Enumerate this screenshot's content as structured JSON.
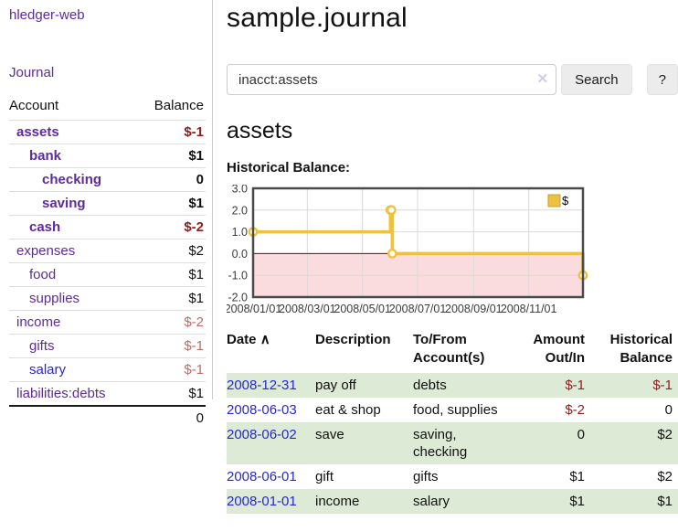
{
  "app": {
    "brand": "hledger-web",
    "nav_journal": "Journal"
  },
  "sidebar": {
    "table": {
      "col_account": "Account",
      "col_balance": "Balance"
    },
    "accounts": [
      {
        "name": "assets",
        "balance": "$-1",
        "level": 1,
        "bold": true,
        "balance_tone": "neg-strong",
        "link_tone": "purple"
      },
      {
        "name": "bank",
        "balance": "$1",
        "level": 2,
        "bold": true,
        "balance_tone": "plain",
        "link_tone": "purple"
      },
      {
        "name": "checking",
        "balance": "0",
        "level": 3,
        "bold": true,
        "balance_tone": "plain",
        "link_tone": "purple"
      },
      {
        "name": "saving",
        "balance": "$1",
        "level": 3,
        "bold": true,
        "balance_tone": "plain",
        "link_tone": "purple"
      },
      {
        "name": "cash",
        "balance": "$-2",
        "level": 2,
        "bold": true,
        "balance_tone": "neg-strong",
        "link_tone": "purple"
      },
      {
        "name": "expenses",
        "balance": "$2",
        "level": 1,
        "bold": false,
        "balance_tone": "plain",
        "link_tone": "purple"
      },
      {
        "name": "food",
        "balance": "$1",
        "level": 2,
        "bold": false,
        "balance_tone": "plain",
        "link_tone": "purple"
      },
      {
        "name": "supplies",
        "balance": "$1",
        "level": 2,
        "bold": false,
        "balance_tone": "plain",
        "link_tone": "purple"
      },
      {
        "name": "income",
        "balance": "$-2",
        "level": 1,
        "bold": false,
        "balance_tone": "neg-soft",
        "link_tone": "purple"
      },
      {
        "name": "gifts",
        "balance": "$-1",
        "level": 2,
        "bold": false,
        "balance_tone": "neg-soft",
        "link_tone": "purple"
      },
      {
        "name": "salary",
        "balance": "$-1",
        "level": 2,
        "bold": false,
        "balance_tone": "neg-soft",
        "link_tone": "blue"
      },
      {
        "name": "liabilities:debts",
        "balance": "$1",
        "level": 1,
        "bold": false,
        "balance_tone": "plain",
        "link_tone": "purple"
      }
    ],
    "total": "0"
  },
  "main": {
    "title": "sample.journal",
    "search": {
      "value": "inacct:assets",
      "clear_icon": "✕",
      "button": "Search",
      "help_button": "?"
    },
    "account_heading": "assets",
    "register": {
      "headers": {
        "date": "Date",
        "sort_icon": "∧",
        "description": "Description",
        "account_line1": "To/From",
        "account_line2": "Account(s)",
        "amount_line1": "Amount",
        "amount_line2": "Out/In",
        "balance_line1": "Historical",
        "balance_line2": "Balance"
      },
      "rows": [
        {
          "date": "2008-12-31",
          "description": "pay off",
          "accounts": "debts",
          "amount": "$-1",
          "amount_tone": "neg",
          "balance": "$-1",
          "balance_tone": "neg",
          "shaded": true
        },
        {
          "date": "2008-06-03",
          "description": "eat & shop",
          "accounts": "food, supplies",
          "amount": "$-2",
          "amount_tone": "neg",
          "balance": "0",
          "balance_tone": "plain",
          "shaded": false
        },
        {
          "date": "2008-06-02",
          "description": "save",
          "accounts": "saving, checking",
          "amount": "0",
          "amount_tone": "plain",
          "balance": "$2",
          "balance_tone": "plain",
          "shaded": true
        },
        {
          "date": "2008-06-01",
          "description": "gift",
          "accounts": "gifts",
          "amount": "$1",
          "amount_tone": "plain",
          "balance": "$2",
          "balance_tone": "plain",
          "shaded": false
        },
        {
          "date": "2008-01-01",
          "description": "income",
          "accounts": "salary",
          "amount": "$1",
          "amount_tone": "plain",
          "balance": "$1",
          "balance_tone": "plain",
          "shaded": true
        }
      ]
    }
  },
  "chart_data": {
    "type": "line",
    "step": true,
    "title": "Historical Balance:",
    "series": [
      {
        "name": "$",
        "color": "#edc240",
        "points": [
          [
            "2008-01-01",
            1
          ],
          [
            "2008-06-01",
            2
          ],
          [
            "2008-06-02",
            2
          ],
          [
            "2008-06-03",
            0
          ],
          [
            "2008-12-31",
            -1
          ]
        ]
      }
    ],
    "x_range": [
      "2008-01-01",
      "2008-12-31"
    ],
    "x_ticks": [
      {
        "date": "2008-01-01",
        "label": "2008/01/01"
      },
      {
        "date": "2008-03-01",
        "label": "2008/03/01"
      },
      {
        "date": "2008-05-01",
        "label": "2008/05/01"
      },
      {
        "date": "2008-07-01",
        "label": "2008/07/01"
      },
      {
        "date": "2008-09-01",
        "label": "2008/09/01"
      },
      {
        "date": "2008-11-01",
        "label": "2008/11/01"
      }
    ],
    "y_ticks": [
      {
        "value": 3,
        "label": "3.0"
      },
      {
        "value": 2,
        "label": "2.0"
      },
      {
        "value": 1,
        "label": "1.0"
      },
      {
        "value": 0,
        "label": "0.0"
      },
      {
        "value": -1,
        "label": "-1.0"
      },
      {
        "value": -2,
        "label": "-2.0"
      }
    ],
    "ylim": [
      -2,
      3
    ],
    "grid": true,
    "grid_color": "#d9d9d9",
    "border_color": "#4a4a4a",
    "negative_region_color": "#fbdcde",
    "zero_line_color": "#8b0000",
    "tick_label_color": "#3c3c3c",
    "legend": {
      "label": "$",
      "position": "top-right"
    }
  }
}
